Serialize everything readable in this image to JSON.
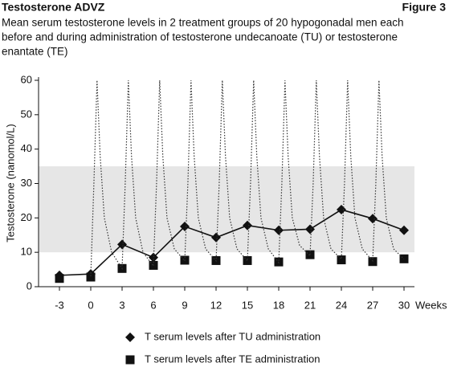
{
  "chart_data": {
    "type": "line",
    "title": "Testosterone ADVZ",
    "figure_label": "Figure 3",
    "subtitle": [
      "Mean serum testosterone levels in 2 treatment groups of 20 hypogonadal men each",
      "before and during administration of testosterone undecanoate (TU) or testosterone",
      "enantate (TE)"
    ],
    "y_label": "Testosterone (nanomol/L)",
    "x_label": "Weeks",
    "x": [
      -3,
      0,
      3,
      6,
      9,
      12,
      15,
      18,
      21,
      24,
      27,
      30
    ],
    "xlim": [
      -5,
      31
    ],
    "xticks": [
      -3,
      0,
      3,
      6,
      9,
      12,
      15,
      18,
      21,
      24,
      27,
      30
    ],
    "ylim": [
      0,
      60
    ],
    "yticks": [
      0,
      10,
      20,
      30,
      40,
      50,
      60
    ],
    "band": [
      10,
      35
    ],
    "band_color": "#e6e6e6",
    "legend": "bottom",
    "series": [
      {
        "name": "T serum levels after TU administration",
        "marker": "diamond",
        "line": true,
        "color": "#111111",
        "values": [
          3.3,
          3.7,
          12.3,
          8.5,
          17.5,
          14.3,
          17.8,
          16.4,
          16.7,
          22.4,
          19.8,
          16.4
        ]
      },
      {
        "name": "T serum levels after TE administration",
        "marker": "square",
        "line": false,
        "color": "#111111",
        "values": [
          2.4,
          2.8,
          5.3,
          6.2,
          7.7,
          7.6,
          7.6,
          7.2,
          9.3,
          7.8,
          7.3,
          8.1
        ]
      },
      {
        "style": "dotted",
        "color": "#333333",
        "x": [
          0,
          0.3,
          0.6,
          0.9,
          1.3,
          2,
          3,
          3.3,
          3.6,
          3.9,
          4.3,
          5,
          6,
          6.3,
          6.6,
          6.9,
          7.3,
          8,
          9,
          9.3,
          9.6,
          9.9,
          10.3,
          11,
          12,
          12.3,
          12.6,
          12.9,
          13.3,
          14,
          15,
          15.3,
          15.6,
          15.9,
          16.3,
          17,
          18,
          18.3,
          18.6,
          18.9,
          19.3,
          20,
          21,
          21.3,
          21.6,
          21.9,
          22.3,
          23,
          24,
          24.3,
          24.6,
          24.9,
          25.3,
          26,
          27,
          27.3,
          27.6,
          27.9,
          28.3,
          29,
          30
        ],
        "values": [
          3,
          30,
          60,
          38,
          20,
          10,
          5.3,
          30,
          60,
          38,
          20,
          10,
          6,
          30,
          60,
          38,
          20,
          11,
          7.5,
          30,
          60,
          38,
          20,
          11,
          7.5,
          30,
          60,
          38,
          20,
          11,
          7.5,
          30,
          60,
          38,
          20,
          11,
          7,
          30,
          60,
          38,
          20,
          12,
          9,
          30,
          60,
          38,
          20,
          11,
          8,
          30,
          60,
          38,
          20,
          11,
          7.5,
          30,
          60,
          38,
          20,
          11,
          8
        ]
      }
    ]
  }
}
